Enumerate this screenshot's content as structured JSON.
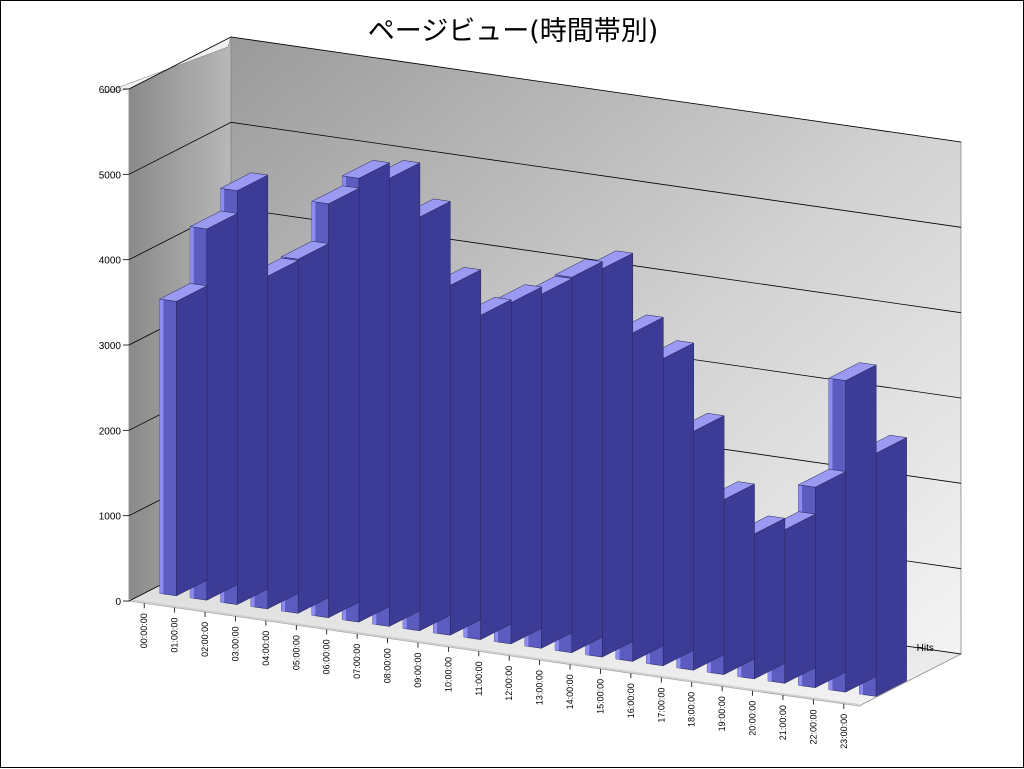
{
  "chart_data": {
    "type": "bar",
    "title": "ページビュー(時間帯別)",
    "categories": [
      "00:00:00",
      "01:00:00",
      "02:00:00",
      "03:00:00",
      "04:00:00",
      "05:00:00",
      "06:00:00",
      "07:00:00",
      "08:00:00",
      "09:00:00",
      "10:00:00",
      "11:00:00",
      "12:00:00",
      "13:00:00",
      "14:00:00",
      "15:00:00",
      "16:00:00",
      "17:00:00",
      "18:00:00",
      "19:00:00",
      "20:00:00",
      "21:00:00",
      "22:00:00",
      "23:00:00"
    ],
    "series": [
      {
        "name": "Hits",
        "values": [
          3450,
          4350,
          4850,
          3900,
          4150,
          4850,
          5200,
          5250,
          4850,
          4100,
          3800,
          4000,
          4150,
          4400,
          4550,
          3850,
          3600,
          2800,
          2050,
          1700,
          1800,
          2350,
          3650,
          2850
        ]
      }
    ],
    "ylim": [
      0,
      6000
    ],
    "yticks": [
      0,
      1000,
      2000,
      3000,
      4000,
      5000,
      6000
    ],
    "style": "3d",
    "gridlines": true,
    "colors": {
      "bar_front": "#5c5cc0",
      "bar_top": "#9a9af2",
      "bar_side": "#3c3c96",
      "wall": "#bdbdbd",
      "floor": "#e8e8e8"
    }
  }
}
